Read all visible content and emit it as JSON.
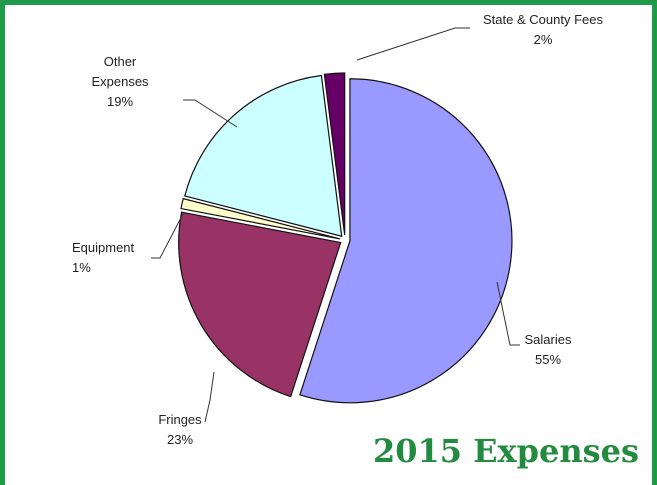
{
  "chart_data": {
    "type": "pie",
    "title": "2015 Expenses",
    "categories": [
      "Salaries",
      "Fringes",
      "Equipment",
      "Other Expenses",
      "State & County Fees"
    ],
    "values": [
      55,
      23,
      1,
      19,
      2
    ],
    "value_labels": [
      "55%",
      "23%",
      "1%",
      "19%",
      "2%"
    ],
    "colors": [
      "#9999ff",
      "#993366",
      "#ffffcc",
      "#ccffff",
      "#660066"
    ]
  }
}
